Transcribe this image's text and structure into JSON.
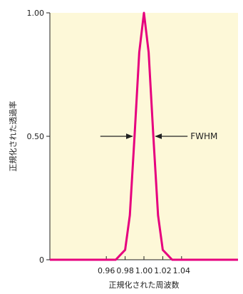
{
  "chart_data": {
    "type": "line",
    "title": "",
    "xlabel": "正規化された周波数",
    "ylabel": "正規化された透過率",
    "xlim": [
      0.9,
      1.1
    ],
    "ylim": [
      0,
      1
    ],
    "x_ticks": [
      0.96,
      0.98,
      1.0,
      1.02,
      1.04
    ],
    "x_tick_labels": [
      "0.96",
      "0.98",
      "1.00",
      "1.02",
      "1.04"
    ],
    "y_ticks": [
      0,
      0.5,
      1.0
    ],
    "y_tick_labels": [
      "0",
      "0.50",
      "1.00"
    ],
    "grid": false,
    "series": [
      {
        "x": [
          0.95,
          0.96,
          0.97,
          0.98,
          0.985,
          0.99,
          0.995,
          1.0,
          1.005,
          1.01,
          1.015,
          1.02,
          1.03,
          1.04,
          1.05
        ],
        "y": [
          0.0,
          0.0,
          0.0,
          0.04,
          0.18,
          0.5,
          0.84,
          1.0,
          0.84,
          0.5,
          0.18,
          0.04,
          0.0,
          0.0,
          0.0
        ]
      }
    ],
    "annotation": {
      "text": "FWHM",
      "y": 0.5,
      "x_left": 0.99,
      "x_right": 1.01
    },
    "colors": {
      "background": "#fdf8d8",
      "line": "#e6007e",
      "axis": "#222222"
    }
  }
}
